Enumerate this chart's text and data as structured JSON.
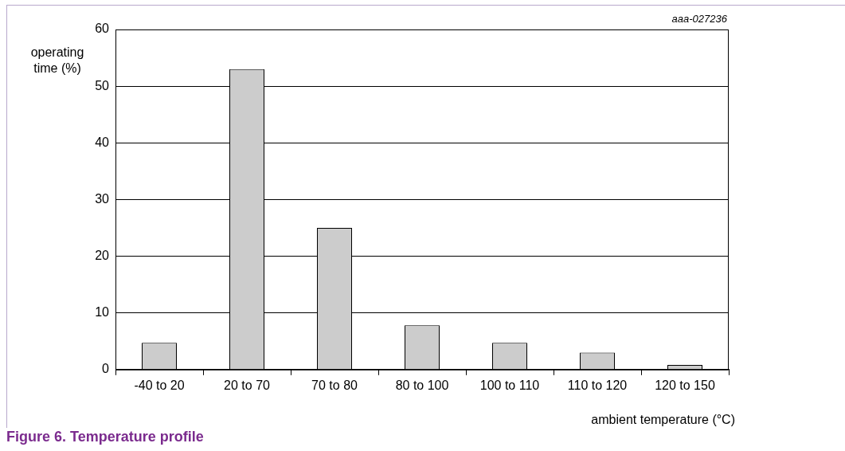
{
  "chart_data": {
    "type": "bar",
    "title": "Figure 6.  Temperature profile",
    "xlabel": "ambient temperature (°C)",
    "ylabel": "operating time (%)",
    "annotations": [
      "aaa-027236"
    ],
    "categories": [
      "-40 to 20",
      "20 to 70",
      "70 to 80",
      "80 to 100",
      "100 to 110",
      "110 to 120",
      "120 to 150"
    ],
    "values": [
      4.7,
      53,
      25,
      7.8,
      4.7,
      3,
      0.8
    ],
    "color": "#cccccc",
    "ylim": [
      0,
      60
    ],
    "yticks": [
      0,
      10,
      20,
      30,
      40,
      50,
      60
    ],
    "grid": "y",
    "legend": false
  }
}
